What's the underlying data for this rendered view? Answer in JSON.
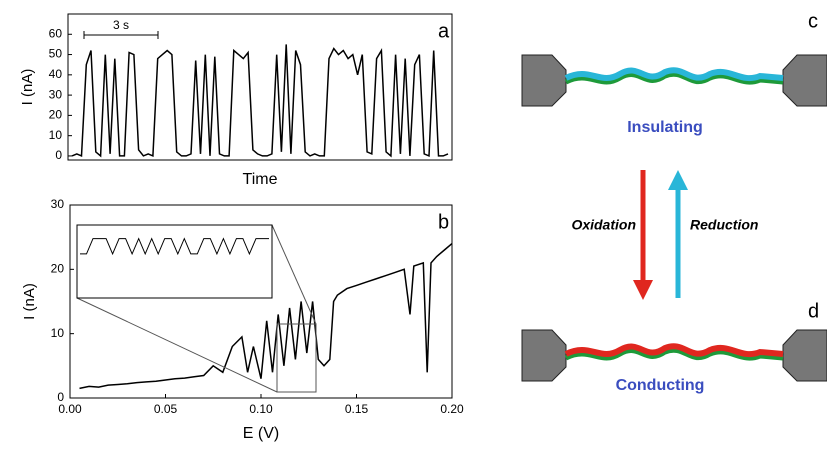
{
  "chart_data": [
    {
      "type": "line",
      "panel": "a",
      "ylabel": "I (nA)",
      "xlabel": "Time",
      "scale_bar": "3 s",
      "color": "#000000",
      "ylim": [
        -2,
        70
      ],
      "yticks": [
        0,
        10,
        20,
        30,
        40,
        50,
        60
      ],
      "values": [
        0,
        1,
        0,
        45,
        52,
        2,
        0,
        50,
        1,
        48,
        0,
        0,
        51,
        50,
        3,
        0,
        1,
        0,
        48,
        50,
        52,
        50,
        2,
        0,
        0,
        1,
        47,
        1,
        50,
        0,
        49,
        1,
        0,
        0,
        52,
        50,
        48,
        51,
        3,
        1,
        0,
        0,
        1,
        50,
        2,
        55,
        1,
        52,
        45,
        2,
        0,
        1,
        0,
        0,
        48,
        53,
        50,
        52,
        48,
        50,
        40,
        50,
        2,
        1,
        48,
        52,
        2,
        0,
        50,
        1,
        48,
        0,
        45,
        50,
        1,
        0,
        52,
        0,
        0,
        1
      ]
    },
    {
      "type": "line",
      "panel": "b",
      "ylabel": "I (nA)",
      "xlabel": "E (V)",
      "color": "#000000",
      "xlim": [
        0,
        0.2
      ],
      "ylim": [
        0,
        30
      ],
      "xticks": [
        {
          "value": 0,
          "label": "0.00"
        },
        0.05,
        {
          "value": 0.1,
          "label": "0.10"
        },
        0.15,
        {
          "value": 0.2,
          "label": "0.20"
        }
      ],
      "yticks": [
        0,
        10,
        20,
        30
      ],
      "x": [
        0.005,
        0.01,
        0.015,
        0.02,
        0.025,
        0.03,
        0.035,
        0.04,
        0.045,
        0.05,
        0.055,
        0.06,
        0.065,
        0.07,
        0.075,
        0.08,
        0.085,
        0.09,
        0.093,
        0.096,
        0.1,
        0.103,
        0.106,
        0.109,
        0.112,
        0.115,
        0.118,
        0.121,
        0.124,
        0.127,
        0.13,
        0.133,
        0.136,
        0.138,
        0.14,
        0.145,
        0.15,
        0.155,
        0.16,
        0.165,
        0.17,
        0.175,
        0.178,
        0.18,
        0.185,
        0.187,
        0.189,
        0.192,
        0.196,
        0.2
      ],
      "values": [
        1.5,
        1.8,
        1.7,
        2.0,
        2.1,
        2.2,
        2.4,
        2.5,
        2.6,
        2.8,
        3.0,
        3.1,
        3.3,
        3.5,
        5,
        4,
        8,
        9.5,
        4,
        8,
        3,
        12,
        4,
        13,
        5,
        14,
        6,
        15,
        7,
        15,
        6,
        5,
        6,
        15,
        16,
        17,
        17.5,
        18,
        18.5,
        19,
        19.5,
        20,
        13,
        20.5,
        21,
        4,
        21,
        22,
        23,
        24
      ],
      "inset_values": [
        10,
        10,
        14,
        14,
        14,
        10,
        14,
        14,
        10,
        14,
        10,
        14,
        10,
        14,
        14,
        10,
        14,
        10,
        10,
        14,
        14,
        10,
        14,
        10,
        14,
        14,
        10,
        14,
        14,
        14
      ]
    }
  ],
  "diagram": {
    "panel_c": "c",
    "panel_d": "d",
    "top_state": "Insulating",
    "bottom_state": "Conducting",
    "down_arrow": "Oxidation",
    "up_arrow": "Reduction"
  }
}
